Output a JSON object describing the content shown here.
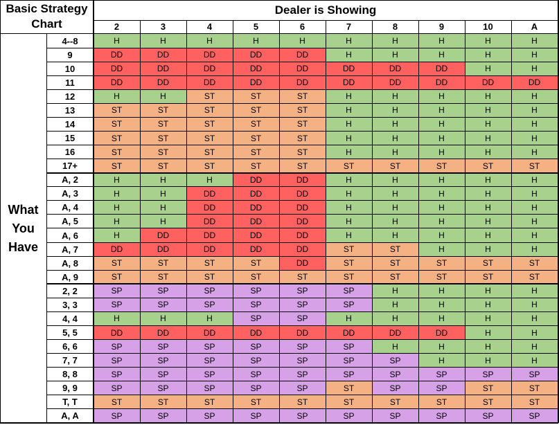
{
  "title_line1": "Basic Strategy",
  "title_line2": "Chart",
  "dealer_header": "Dealer is Showing",
  "side_label": [
    "What",
    "You",
    "Have"
  ],
  "dealer_cards": [
    "2",
    "3",
    "4",
    "5",
    "6",
    "7",
    "8",
    "9",
    "10",
    "A"
  ],
  "action_colors": {
    "H": "#a9d18e",
    "DD": "#ff6161",
    "ST": "#f4b183",
    "SP": "#d7a1e8"
  },
  "rows": [
    {
      "hand": "4--8",
      "actions": [
        "H",
        "H",
        "H",
        "H",
        "H",
        "H",
        "H",
        "H",
        "H",
        "H"
      ]
    },
    {
      "hand": "9",
      "actions": [
        "DD",
        "DD",
        "DD",
        "DD",
        "DD",
        "H",
        "H",
        "H",
        "H",
        "H"
      ]
    },
    {
      "hand": "10",
      "actions": [
        "DD",
        "DD",
        "DD",
        "DD",
        "DD",
        "DD",
        "DD",
        "DD",
        "H",
        "H"
      ]
    },
    {
      "hand": "11",
      "actions": [
        "DD",
        "DD",
        "DD",
        "DD",
        "DD",
        "DD",
        "DD",
        "DD",
        "DD",
        "DD"
      ]
    },
    {
      "hand": "12",
      "actions": [
        "H",
        "H",
        "ST",
        "ST",
        "ST",
        "H",
        "H",
        "H",
        "H",
        "H"
      ]
    },
    {
      "hand": "13",
      "actions": [
        "ST",
        "ST",
        "ST",
        "ST",
        "ST",
        "H",
        "H",
        "H",
        "H",
        "H"
      ]
    },
    {
      "hand": "14",
      "actions": [
        "ST",
        "ST",
        "ST",
        "ST",
        "ST",
        "H",
        "H",
        "H",
        "H",
        "H"
      ]
    },
    {
      "hand": "15",
      "actions": [
        "ST",
        "ST",
        "ST",
        "ST",
        "ST",
        "H",
        "H",
        "H",
        "H",
        "H"
      ]
    },
    {
      "hand": "16",
      "actions": [
        "ST",
        "ST",
        "ST",
        "ST",
        "ST",
        "H",
        "H",
        "H",
        "H",
        "H"
      ]
    },
    {
      "hand": "17+",
      "actions": [
        "ST",
        "ST",
        "ST",
        "ST",
        "ST",
        "ST",
        "ST",
        "ST",
        "ST",
        "ST"
      ]
    },
    {
      "hand": "A, 2",
      "actions": [
        "H",
        "H",
        "H",
        "DD",
        "DD",
        "H",
        "H",
        "H",
        "H",
        "H"
      ]
    },
    {
      "hand": "A, 3",
      "actions": [
        "H",
        "H",
        "DD",
        "DD",
        "DD",
        "H",
        "H",
        "H",
        "H",
        "H"
      ]
    },
    {
      "hand": "A, 4",
      "actions": [
        "H",
        "H",
        "DD",
        "DD",
        "DD",
        "H",
        "H",
        "H",
        "H",
        "H"
      ]
    },
    {
      "hand": "A, 5",
      "actions": [
        "H",
        "H",
        "DD",
        "DD",
        "DD",
        "H",
        "H",
        "H",
        "H",
        "H"
      ]
    },
    {
      "hand": "A, 6",
      "actions": [
        "H",
        "DD",
        "DD",
        "DD",
        "DD",
        "H",
        "H",
        "H",
        "H",
        "H"
      ]
    },
    {
      "hand": "A, 7",
      "actions": [
        "DD",
        "DD",
        "DD",
        "DD",
        "DD",
        "ST",
        "ST",
        "H",
        "H",
        "H"
      ]
    },
    {
      "hand": "A, 8",
      "actions": [
        "ST",
        "ST",
        "ST",
        "ST",
        "DD",
        "ST",
        "ST",
        "ST",
        "ST",
        "ST"
      ]
    },
    {
      "hand": "A, 9",
      "actions": [
        "ST",
        "ST",
        "ST",
        "ST",
        "ST",
        "ST",
        "ST",
        "ST",
        "ST",
        "ST"
      ]
    },
    {
      "hand": "2, 2",
      "actions": [
        "SP",
        "SP",
        "SP",
        "SP",
        "SP",
        "SP",
        "H",
        "H",
        "H",
        "H"
      ]
    },
    {
      "hand": "3, 3",
      "actions": [
        "SP",
        "SP",
        "SP",
        "SP",
        "SP",
        "SP",
        "H",
        "H",
        "H",
        "H"
      ]
    },
    {
      "hand": "4, 4",
      "actions": [
        "H",
        "H",
        "H",
        "SP",
        "SP",
        "H",
        "H",
        "H",
        "H",
        "H"
      ]
    },
    {
      "hand": "5, 5",
      "actions": [
        "DD",
        "DD",
        "DD",
        "DD",
        "DD",
        "DD",
        "DD",
        "DD",
        "H",
        "H"
      ]
    },
    {
      "hand": "6, 6",
      "actions": [
        "SP",
        "SP",
        "SP",
        "SP",
        "SP",
        "SP",
        "H",
        "H",
        "H",
        "H"
      ]
    },
    {
      "hand": "7, 7",
      "actions": [
        "SP",
        "SP",
        "SP",
        "SP",
        "SP",
        "SP",
        "SP",
        "H",
        "H",
        "H"
      ]
    },
    {
      "hand": "8, 8",
      "actions": [
        "SP",
        "SP",
        "SP",
        "SP",
        "SP",
        "SP",
        "SP",
        "SP",
        "SP",
        "SP"
      ]
    },
    {
      "hand": "9, 9",
      "actions": [
        "SP",
        "SP",
        "SP",
        "SP",
        "SP",
        "ST",
        "SP",
        "SP",
        "ST",
        "ST"
      ]
    },
    {
      "hand": "T, T",
      "actions": [
        "ST",
        "ST",
        "ST",
        "ST",
        "ST",
        "ST",
        "ST",
        "ST",
        "ST",
        "ST"
      ]
    },
    {
      "hand": "A, A",
      "actions": [
        "SP",
        "SP",
        "SP",
        "SP",
        "SP",
        "SP",
        "SP",
        "SP",
        "SP",
        "SP"
      ]
    }
  ]
}
